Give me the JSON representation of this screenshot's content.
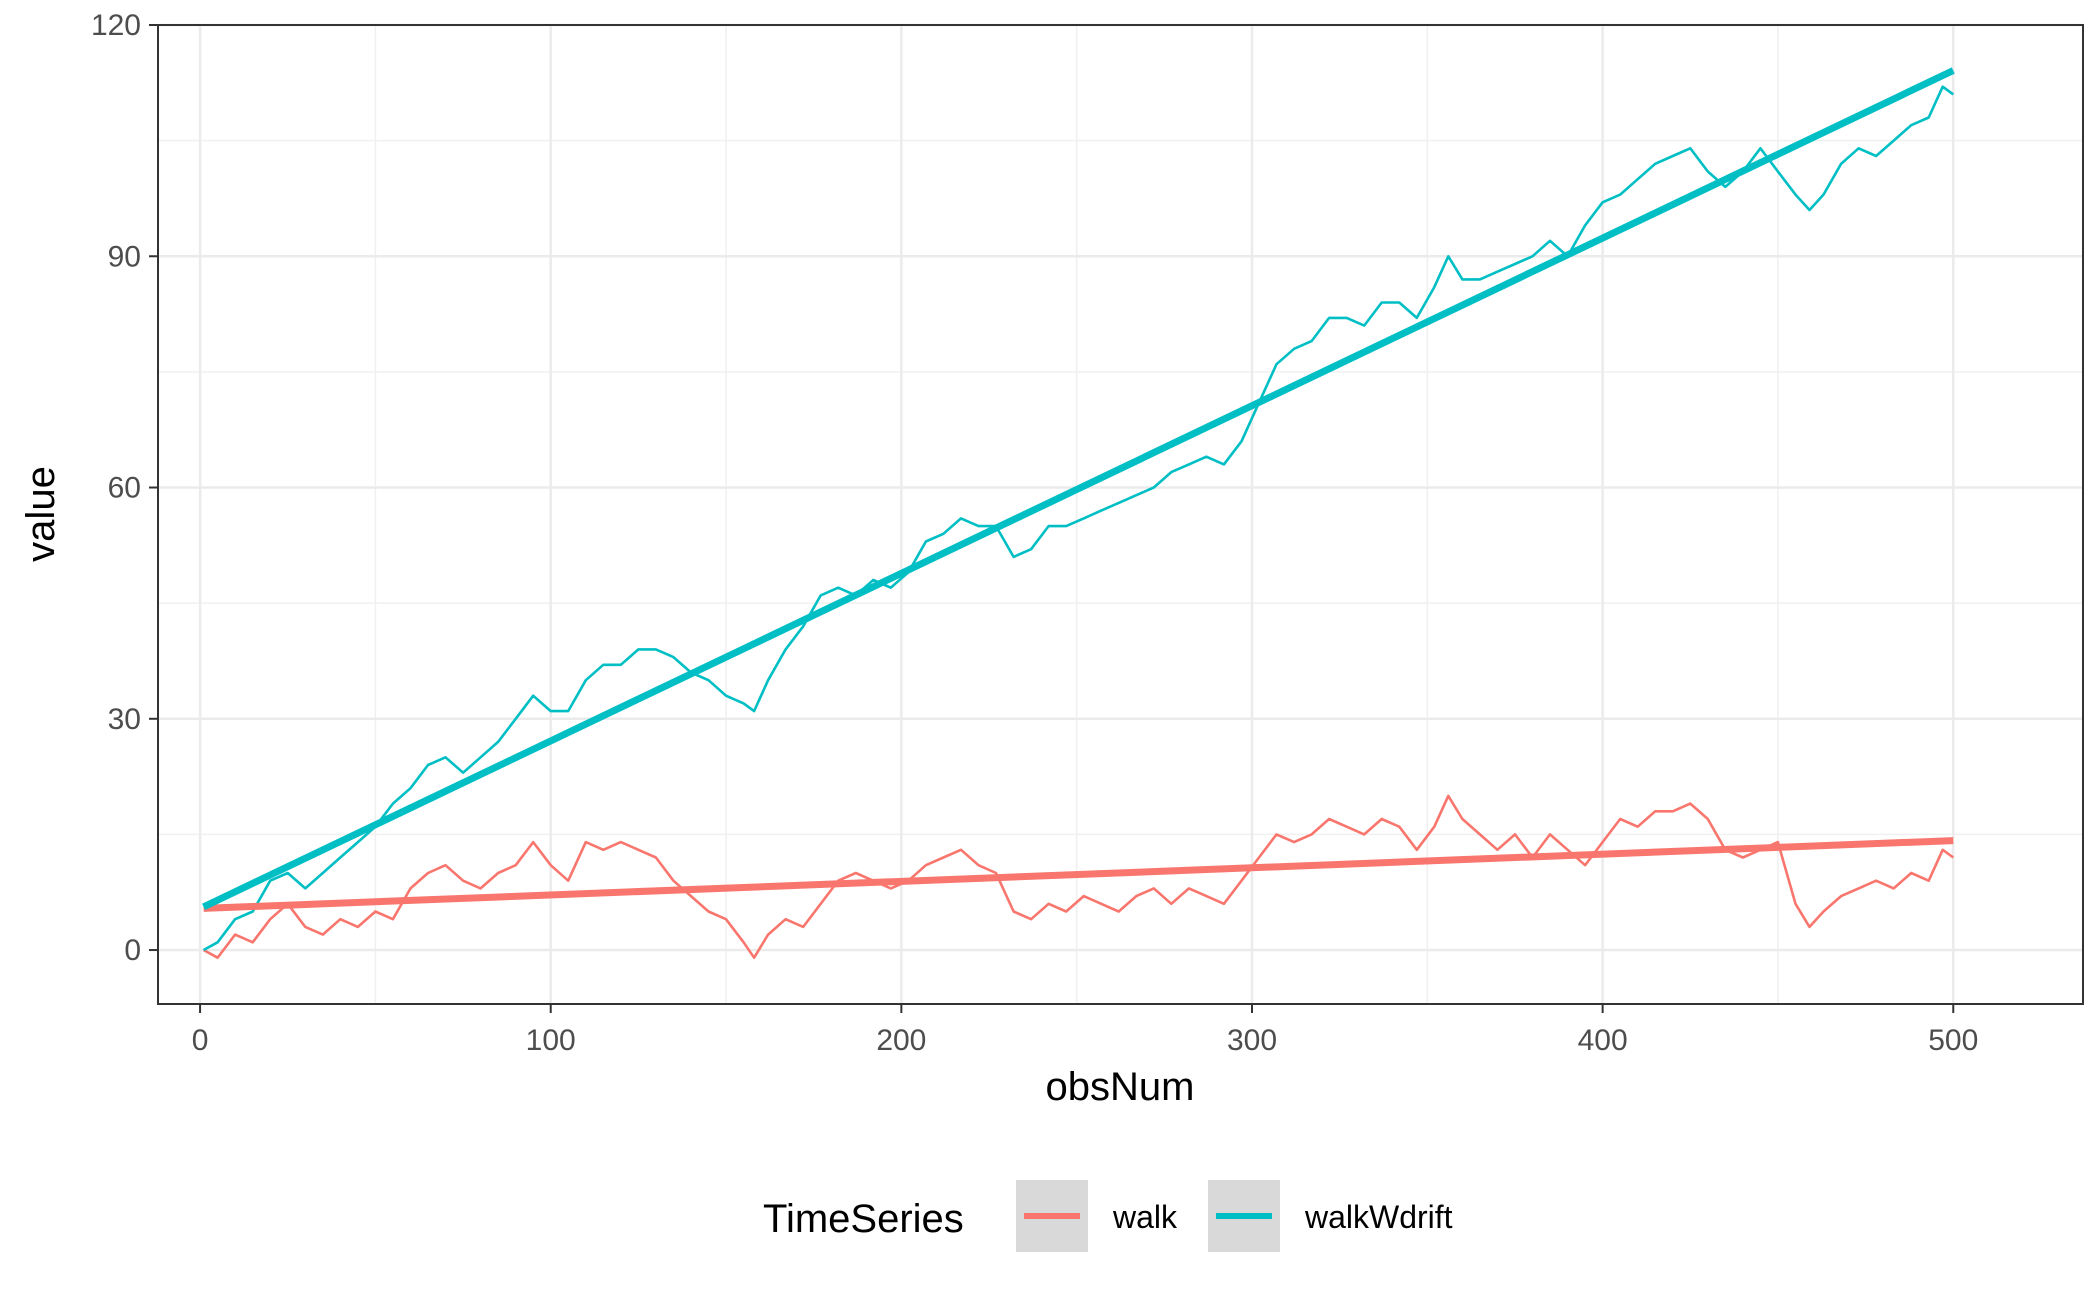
{
  "chart_data": {
    "type": "line",
    "title": "",
    "xlabel": "obsNum",
    "ylabel": "value",
    "xlim": [
      -12,
      537
    ],
    "ylim": [
      -7,
      120
    ],
    "x_ticks": [
      0,
      100,
      200,
      300,
      400,
      500
    ],
    "y_ticks": [
      0,
      30,
      60,
      90,
      120
    ],
    "x_tick_labels": [
      "0",
      "100",
      "200",
      "300",
      "400",
      "500"
    ],
    "y_tick_labels": [
      "0",
      "30",
      "60",
      "90",
      "120"
    ],
    "grid": true,
    "legend": {
      "title": "TimeSeries",
      "placement": "bottom",
      "entries": [
        "walk",
        "walkWdrift"
      ]
    },
    "series": [
      {
        "name": "walk",
        "color": "#F8766D",
        "x": [
          1,
          5,
          10,
          15,
          20,
          25,
          30,
          35,
          40,
          45,
          50,
          55,
          60,
          65,
          70,
          75,
          80,
          85,
          90,
          95,
          100,
          105,
          110,
          115,
          120,
          125,
          130,
          135,
          140,
          145,
          150,
          155,
          158,
          162,
          167,
          172,
          177,
          182,
          187,
          192,
          197,
          202,
          207,
          212,
          217,
          222,
          227,
          232,
          237,
          242,
          247,
          252,
          257,
          262,
          267,
          272,
          277,
          282,
          287,
          292,
          297,
          302,
          307,
          312,
          317,
          322,
          327,
          332,
          337,
          342,
          347,
          352,
          356,
          360,
          365,
          370,
          375,
          380,
          385,
          390,
          395,
          400,
          405,
          410,
          415,
          420,
          425,
          430,
          435,
          440,
          445,
          450,
          455,
          459,
          463,
          468,
          473,
          478,
          483,
          488,
          493,
          497,
          500
        ],
        "values": [
          0,
          -1,
          2,
          1,
          4,
          6,
          3,
          2,
          4,
          3,
          5,
          4,
          8,
          10,
          11,
          9,
          8,
          10,
          11,
          14,
          11,
          9,
          14,
          13,
          14,
          13,
          12,
          9,
          7,
          5,
          4,
          1,
          -1,
          2,
          4,
          3,
          6,
          9,
          10,
          9,
          8,
          9,
          11,
          12,
          13,
          11,
          10,
          5,
          4,
          6,
          5,
          7,
          6,
          5,
          7,
          8,
          6,
          8,
          7,
          6,
          9,
          12,
          15,
          14,
          15,
          17,
          16,
          15,
          17,
          16,
          13,
          16,
          20,
          17,
          15,
          13,
          15,
          12,
          15,
          13,
          11,
          14,
          17,
          16,
          18,
          18,
          19,
          17,
          13,
          12,
          13,
          14,
          6,
          3,
          5,
          7,
          8,
          9,
          8,
          10,
          9,
          13,
          12
        ]
      },
      {
        "name": "walkWdrift",
        "color": "#00BFC4",
        "x": [
          1,
          5,
          10,
          15,
          20,
          25,
          30,
          35,
          40,
          45,
          50,
          55,
          60,
          65,
          70,
          75,
          80,
          85,
          90,
          95,
          100,
          105,
          110,
          115,
          120,
          125,
          130,
          135,
          140,
          145,
          150,
          155,
          158,
          162,
          167,
          172,
          177,
          182,
          187,
          192,
          197,
          202,
          207,
          212,
          217,
          222,
          227,
          232,
          237,
          242,
          247,
          252,
          257,
          262,
          267,
          272,
          277,
          282,
          287,
          292,
          297,
          302,
          307,
          312,
          317,
          322,
          327,
          332,
          337,
          342,
          347,
          352,
          356,
          360,
          365,
          370,
          375,
          380,
          385,
          390,
          395,
          400,
          405,
          410,
          415,
          420,
          425,
          430,
          435,
          440,
          445,
          450,
          455,
          459,
          463,
          468,
          473,
          478,
          483,
          488,
          493,
          497,
          500
        ],
        "values": [
          0,
          1,
          4,
          5,
          9,
          10,
          8,
          10,
          12,
          14,
          16,
          19,
          21,
          24,
          25,
          23,
          25,
          27,
          30,
          33,
          31,
          31,
          35,
          37,
          37,
          39,
          39,
          38,
          36,
          35,
          33,
          32,
          31,
          35,
          39,
          42,
          46,
          47,
          46,
          48,
          47,
          49,
          53,
          54,
          56,
          55,
          55,
          51,
          52,
          55,
          55,
          56,
          57,
          58,
          59,
          60,
          62,
          63,
          64,
          63,
          66,
          71,
          76,
          78,
          79,
          82,
          82,
          81,
          84,
          84,
          82,
          86,
          90,
          87,
          87,
          88,
          89,
          90,
          92,
          90,
          94,
          97,
          98,
          100,
          102,
          103,
          104,
          101,
          99,
          101,
          104,
          101,
          98,
          96,
          98,
          102,
          104,
          103,
          105,
          107,
          108,
          112,
          111
        ]
      }
    ],
    "fit_lines": [
      {
        "name": "walk",
        "color": "#F8766D",
        "x": [
          1,
          500
        ],
        "values": [
          5.4,
          14.2
        ]
      },
      {
        "name": "walkWdrift",
        "color": "#00BFC4",
        "x": [
          1,
          500
        ],
        "values": [
          5.6,
          114.1
        ]
      }
    ]
  }
}
